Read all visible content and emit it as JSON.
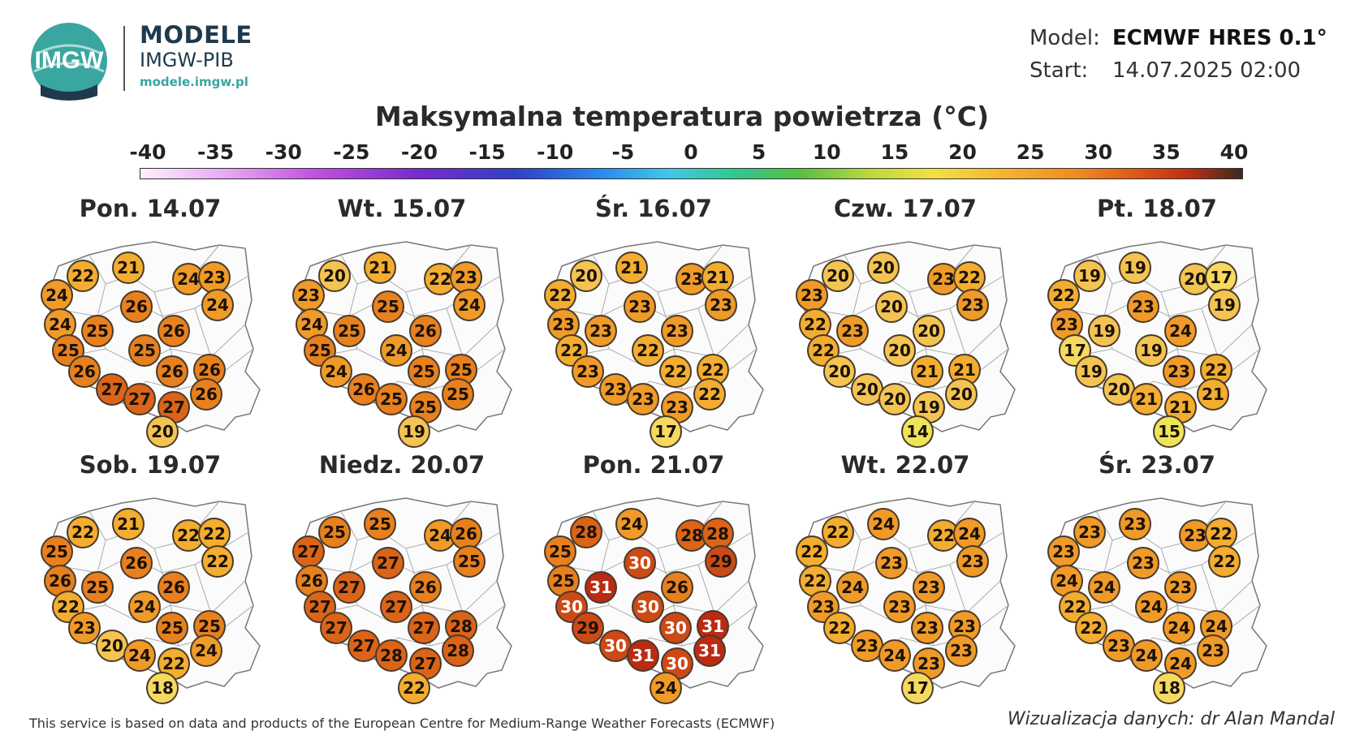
{
  "header": {
    "logo_text": "IMGW",
    "brand_title": "MODELE",
    "brand_subtitle": "IMGW-PIB",
    "brand_url": "modele.imgw.pl",
    "model_label": "Model:",
    "model_value": "ECMWF HRES 0.1°",
    "start_label": "Start:",
    "start_value": "14.07.2025 02:00"
  },
  "legend": {
    "title": "Maksymalna temperatura powietrza (°C)",
    "ticks": [
      "-40",
      "-35",
      "-30",
      "-25",
      "-20",
      "-15",
      "-10",
      "-5",
      "0",
      "5",
      "10",
      "15",
      "20",
      "25",
      "30",
      "35",
      "40"
    ]
  },
  "maps": [
    {
      "title": "Pon. 14.07",
      "values": [
        22,
        21,
        24,
        24,
        23,
        24,
        24,
        25,
        26,
        25,
        26,
        25,
        26,
        26,
        26,
        27,
        26,
        27,
        27,
        20
      ]
    },
    {
      "title": "Wt. 15.07",
      "values": [
        20,
        21,
        22,
        23,
        23,
        24,
        24,
        25,
        25,
        25,
        26,
        24,
        25,
        24,
        25,
        26,
        25,
        25,
        25,
        19
      ]
    },
    {
      "title": "Śr. 16.07",
      "values": [
        20,
        21,
        23,
        22,
        21,
        23,
        23,
        23,
        23,
        22,
        23,
        22,
        22,
        23,
        22,
        23,
        22,
        23,
        23,
        17
      ]
    },
    {
      "title": "Czw. 17.07",
      "values": [
        20,
        20,
        23,
        23,
        22,
        23,
        22,
        23,
        20,
        22,
        20,
        20,
        21,
        20,
        21,
        20,
        20,
        20,
        19,
        14
      ]
    },
    {
      "title": "Pt. 18.07",
      "values": [
        19,
        19,
        20,
        22,
        17,
        19,
        23,
        19,
        23,
        17,
        24,
        19,
        23,
        19,
        22,
        20,
        21,
        21,
        21,
        15
      ]
    },
    {
      "title": "Sob. 19.07",
      "values": [
        22,
        21,
        22,
        25,
        22,
        22,
        26,
        25,
        26,
        22,
        26,
        24,
        25,
        23,
        25,
        20,
        24,
        24,
        22,
        18
      ]
    },
    {
      "title": "Niedz. 20.07",
      "values": [
        25,
        25,
        24,
        27,
        26,
        25,
        26,
        27,
        27,
        27,
        26,
        27,
        27,
        27,
        28,
        27,
        28,
        28,
        27,
        22
      ]
    },
    {
      "title": "Pon. 21.07",
      "values": [
        28,
        24,
        28,
        25,
        28,
        29,
        25,
        31,
        30,
        30,
        26,
        30,
        30,
        29,
        31,
        30,
        31,
        31,
        30,
        24
      ]
    },
    {
      "title": "Wt. 22.07",
      "values": [
        22,
        24,
        22,
        22,
        24,
        23,
        22,
        24,
        23,
        23,
        23,
        23,
        23,
        22,
        23,
        23,
        23,
        24,
        23,
        17
      ]
    },
    {
      "title": "Śr. 23.07",
      "values": [
        23,
        23,
        23,
        23,
        22,
        22,
        24,
        24,
        23,
        22,
        23,
        24,
        24,
        22,
        24,
        23,
        23,
        24,
        24,
        18
      ]
    }
  ],
  "footer": {
    "source_note": "This service is based on data and products of the European Centre for Medium-Range Weather Forecasts (ECMWF)",
    "credit": "Wizualizacja danych: dr Alan Mandal"
  }
}
